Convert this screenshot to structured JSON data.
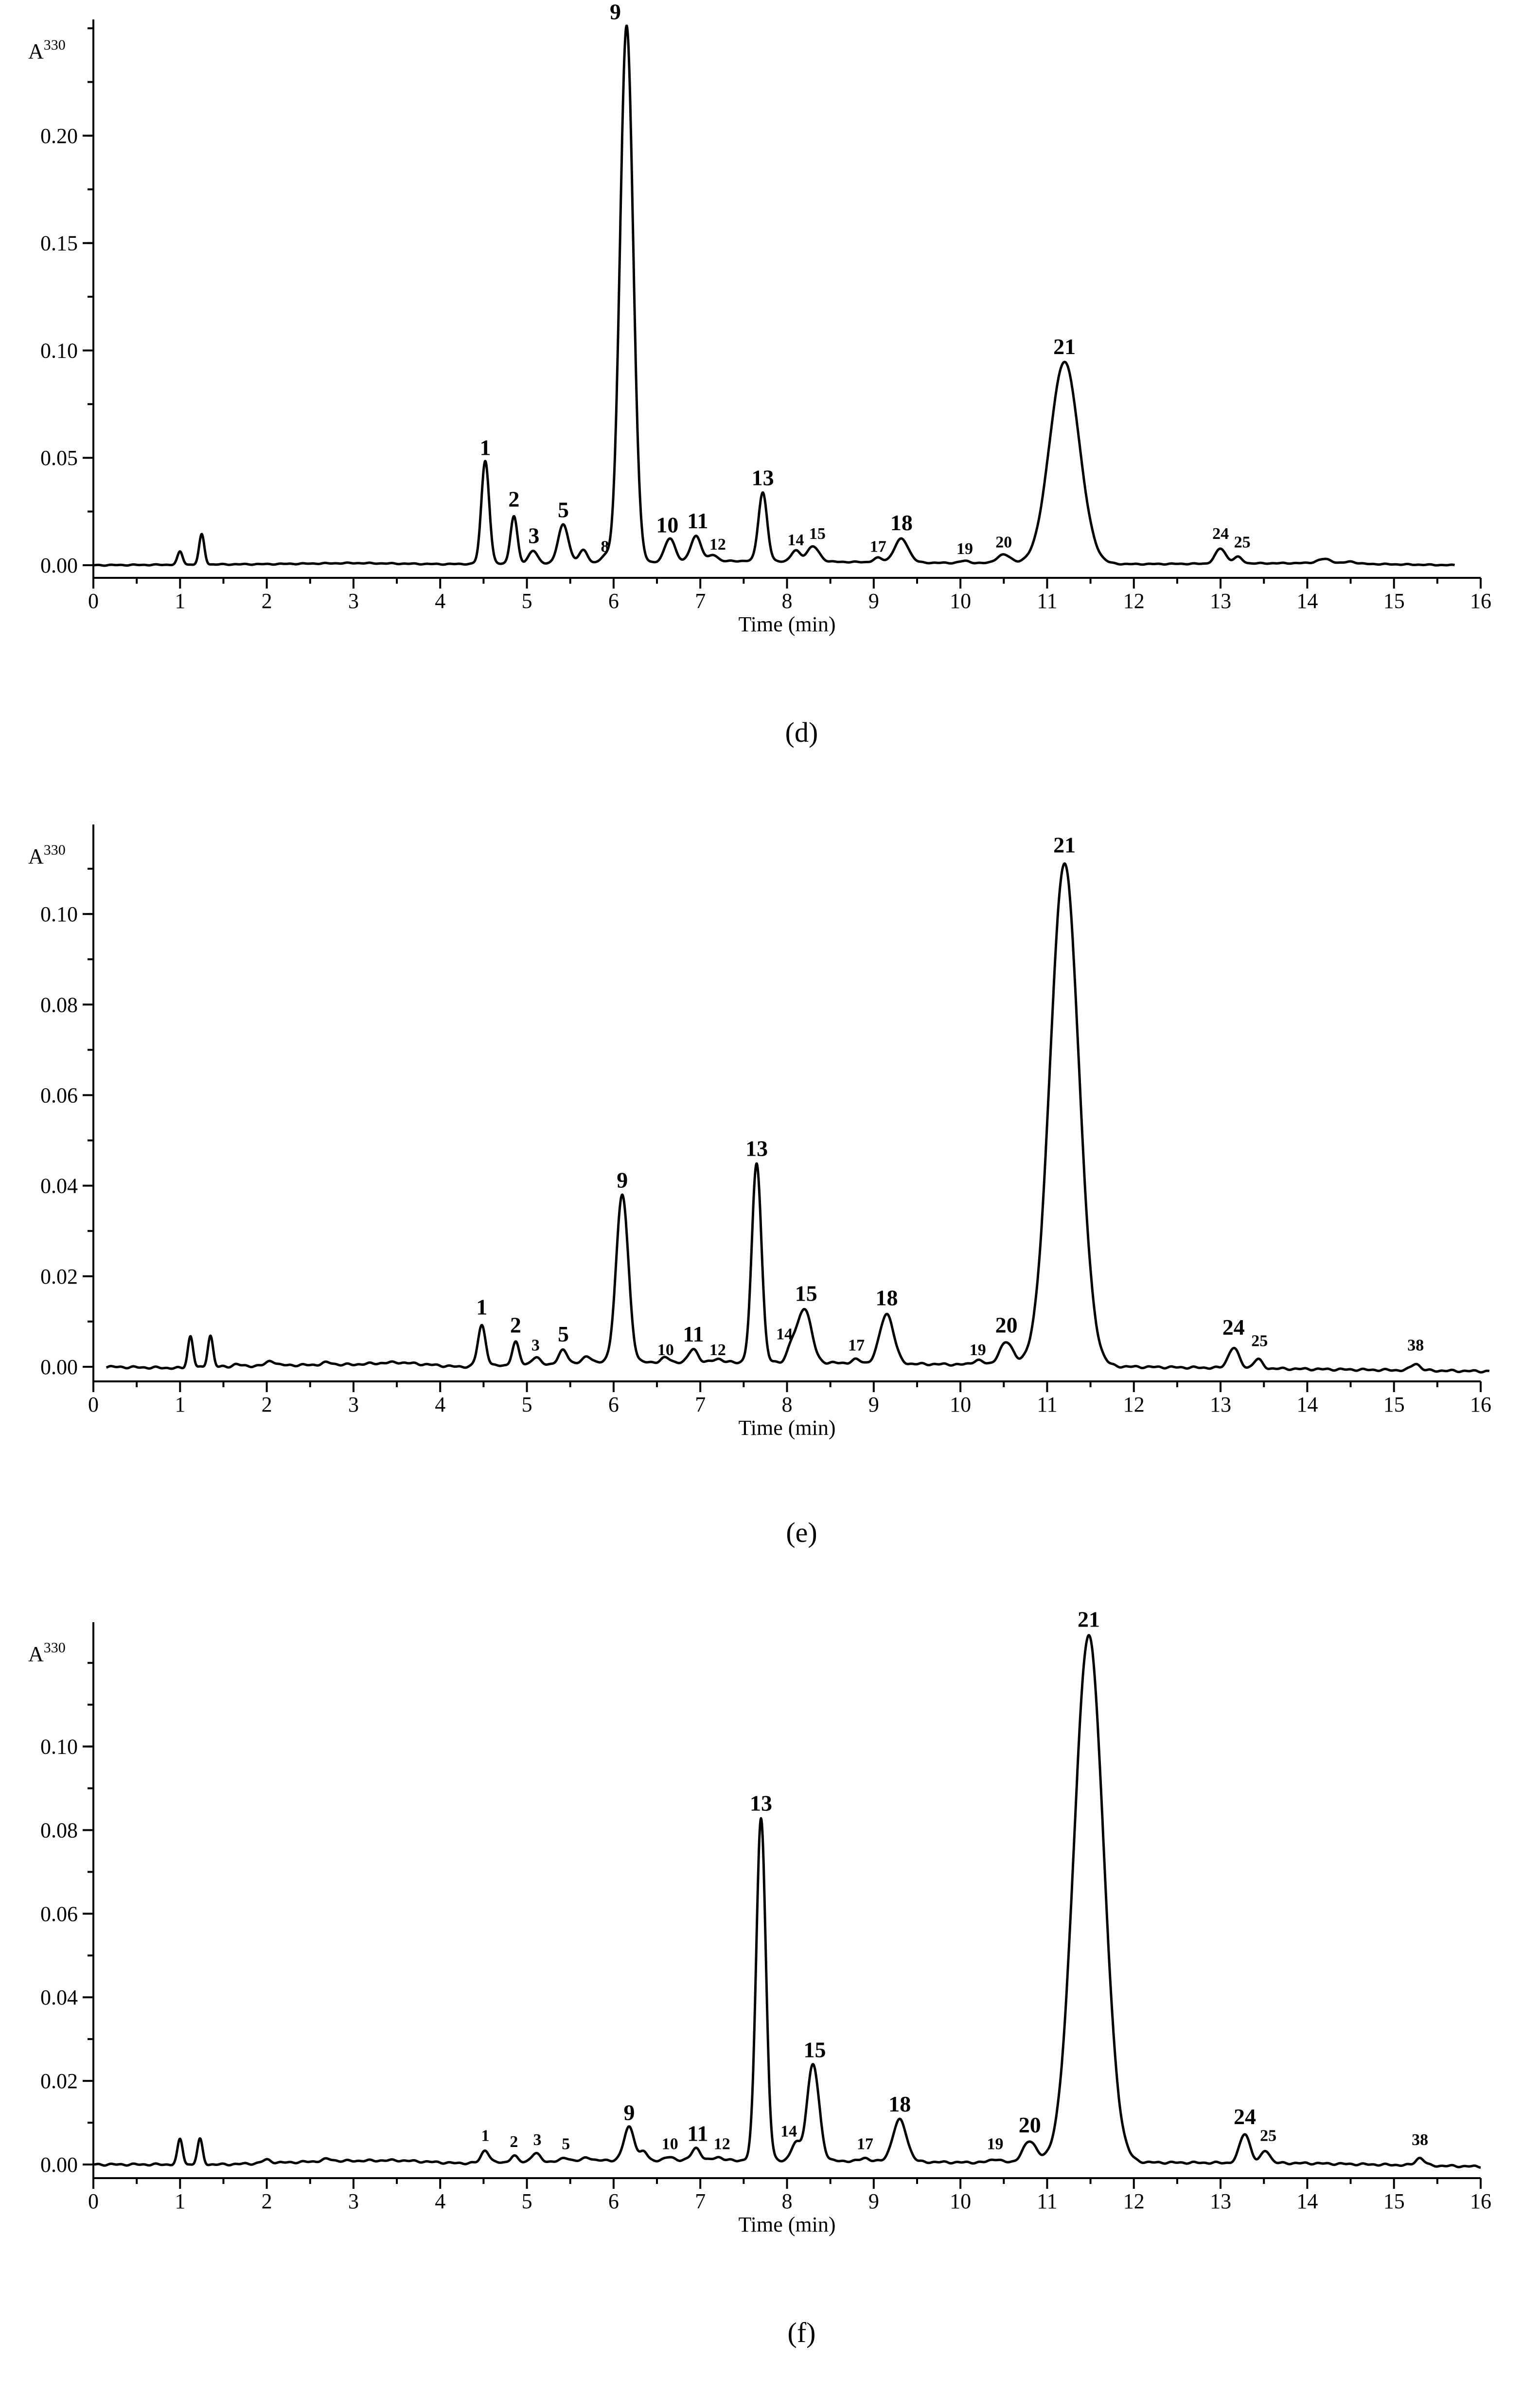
{
  "chart_data": [
    {
      "type": "line",
      "caption": "(d)",
      "caption_letter": "d",
      "ylabel": "A",
      "ylabel_sup": "330",
      "xlabel": "Time (min)",
      "xlim": [
        0,
        16
      ],
      "ylim": [
        -0.005,
        0.255
      ],
      "xticks": [
        "0",
        "1",
        "2",
        "3",
        "4",
        "5",
        "6",
        "7",
        "8",
        "9",
        "10",
        "11",
        "12",
        "13",
        "14",
        "15",
        "16"
      ],
      "yticks": [
        {
          "v": 0.0,
          "t": "0.00"
        },
        {
          "v": 0.05,
          "t": "0.05"
        },
        {
          "v": 0.1,
          "t": "0.10"
        },
        {
          "v": 0.15,
          "t": "0.15"
        },
        {
          "v": 0.2,
          "t": "0.20"
        }
      ],
      "trace_end": 15.7,
      "baseline": [
        [
          0,
          0.0
        ],
        [
          2,
          0.0005
        ],
        [
          3,
          0.001
        ],
        [
          4,
          0.0005
        ],
        [
          5.8,
          0.001
        ],
        [
          7.5,
          0.002
        ],
        [
          10,
          0.001
        ],
        [
          12,
          0.0005
        ],
        [
          14,
          0.001
        ],
        [
          15.7,
          0.0
        ]
      ],
      "peaks": [
        {
          "x": 1.0,
          "h": 0.006,
          "w": 0.03
        },
        {
          "x": 1.25,
          "h": 0.014,
          "w": 0.03
        },
        {
          "x": 4.52,
          "h": 0.048,
          "w": 0.045
        },
        {
          "x": 4.85,
          "h": 0.022,
          "w": 0.04
        },
        {
          "x": 5.07,
          "h": 0.006,
          "w": 0.05
        },
        {
          "x": 5.42,
          "h": 0.018,
          "w": 0.06
        },
        {
          "x": 5.65,
          "h": 0.006,
          "w": 0.05
        },
        {
          "x": 5.9,
          "h": 0.003,
          "w": 0.05
        },
        {
          "x": 6.15,
          "h": 0.25,
          "w": 0.075
        },
        {
          "x": 6.65,
          "h": 0.011,
          "w": 0.06
        },
        {
          "x": 6.95,
          "h": 0.012,
          "w": 0.06
        },
        {
          "x": 7.15,
          "h": 0.003,
          "w": 0.05
        },
        {
          "x": 7.72,
          "h": 0.032,
          "w": 0.05
        },
        {
          "x": 8.1,
          "h": 0.005,
          "w": 0.05
        },
        {
          "x": 8.3,
          "h": 0.007,
          "w": 0.07
        },
        {
          "x": 9.05,
          "h": 0.002,
          "w": 0.05
        },
        {
          "x": 9.32,
          "h": 0.011,
          "w": 0.08
        },
        {
          "x": 10.05,
          "h": 0.001,
          "w": 0.06
        },
        {
          "x": 10.5,
          "h": 0.004,
          "w": 0.08
        },
        {
          "x": 11.2,
          "h": 0.094,
          "w": 0.17
        },
        {
          "x": 13.0,
          "h": 0.007,
          "w": 0.06
        },
        {
          "x": 13.2,
          "h": 0.003,
          "w": 0.05
        },
        {
          "x": 14.2,
          "h": 0.002,
          "w": 0.08
        },
        {
          "x": 14.5,
          "h": 0.001,
          "w": 0.06
        }
      ],
      "labels": [
        {
          "t": "1",
          "x": 4.52,
          "y": 0.049,
          "big": true
        },
        {
          "t": "2",
          "x": 4.85,
          "y": 0.025,
          "big": true
        },
        {
          "t": "3",
          "x": 5.08,
          "y": 0.008,
          "big": true
        },
        {
          "t": "5",
          "x": 5.42,
          "y": 0.02,
          "big": true
        },
        {
          "t": "8",
          "x": 5.9,
          "y": 0.004,
          "big": false
        },
        {
          "t": "9",
          "x": 6.02,
          "y": 0.252,
          "big": true
        },
        {
          "t": "10",
          "x": 6.62,
          "y": 0.013,
          "big": true
        },
        {
          "t": "11",
          "x": 6.97,
          "y": 0.015,
          "big": true
        },
        {
          "t": "12",
          "x": 7.2,
          "y": 0.005,
          "big": false
        },
        {
          "t": "13",
          "x": 7.72,
          "y": 0.035,
          "big": true
        },
        {
          "t": "14",
          "x": 8.1,
          "y": 0.007,
          "big": false
        },
        {
          "t": "15",
          "x": 8.35,
          "y": 0.01,
          "big": false
        },
        {
          "t": "17",
          "x": 9.05,
          "y": 0.004,
          "big": false
        },
        {
          "t": "18",
          "x": 9.32,
          "y": 0.014,
          "big": true
        },
        {
          "t": "19",
          "x": 10.05,
          "y": 0.003,
          "big": false
        },
        {
          "t": "20",
          "x": 10.5,
          "y": 0.006,
          "big": false
        },
        {
          "t": "21",
          "x": 11.2,
          "y": 0.096,
          "big": true
        },
        {
          "t": "24",
          "x": 13.0,
          "y": 0.01,
          "big": false
        },
        {
          "t": "25",
          "x": 13.25,
          "y": 0.006,
          "big": false
        }
      ]
    },
    {
      "type": "line",
      "caption": "(e)",
      "caption_letter": "e",
      "ylabel": "A",
      "ylabel_sup": "330",
      "xlabel": "Time (min)",
      "xlim": [
        0,
        16
      ],
      "ylim": [
        -0.003,
        0.12
      ],
      "xticks": [
        "0",
        "1",
        "2",
        "3",
        "4",
        "5",
        "6",
        "7",
        "8",
        "9",
        "10",
        "11",
        "12",
        "13",
        "14",
        "15",
        "16"
      ],
      "yticks": [
        {
          "v": 0.0,
          "t": "0.00"
        },
        {
          "v": 0.02,
          "t": "0.02"
        },
        {
          "v": 0.04,
          "t": "0.04"
        },
        {
          "v": 0.06,
          "t": "0.06"
        },
        {
          "v": 0.08,
          "t": "0.08"
        },
        {
          "v": 0.1,
          "t": "0.10"
        }
      ],
      "trace_end": 16.1,
      "baseline": [
        [
          0.15,
          0.0
        ],
        [
          1,
          -0.0003
        ],
        [
          2,
          0.0003
        ],
        [
          3,
          0.0005
        ],
        [
          3.5,
          0.001
        ],
        [
          4.2,
          0.0
        ],
        [
          6,
          0.001
        ],
        [
          8,
          0.001
        ],
        [
          10,
          0.0005
        ],
        [
          12,
          0.0
        ],
        [
          14,
          -0.0005
        ],
        [
          16.1,
          -0.001
        ]
      ],
      "peaks": [
        {
          "x": 1.12,
          "h": 0.007,
          "w": 0.03
        },
        {
          "x": 1.35,
          "h": 0.007,
          "w": 0.03
        },
        {
          "x": 1.65,
          "h": 0.0005,
          "w": 0.04
        },
        {
          "x": 2.05,
          "h": 0.001,
          "w": 0.05
        },
        {
          "x": 2.7,
          "h": 0.0005,
          "w": 0.06
        },
        {
          "x": 4.48,
          "h": 0.009,
          "w": 0.045
        },
        {
          "x": 4.87,
          "h": 0.005,
          "w": 0.04
        },
        {
          "x": 5.1,
          "h": 0.0015,
          "w": 0.05
        },
        {
          "x": 5.42,
          "h": 0.003,
          "w": 0.05
        },
        {
          "x": 5.7,
          "h": 0.0015,
          "w": 0.05
        },
        {
          "x": 6.1,
          "h": 0.037,
          "w": 0.07
        },
        {
          "x": 6.6,
          "h": 0.001,
          "w": 0.05
        },
        {
          "x": 6.92,
          "h": 0.003,
          "w": 0.05
        },
        {
          "x": 7.2,
          "h": 0.0008,
          "w": 0.05
        },
        {
          "x": 7.65,
          "h": 0.044,
          "w": 0.055
        },
        {
          "x": 8.05,
          "h": 0.003,
          "w": 0.05
        },
        {
          "x": 8.2,
          "h": 0.012,
          "w": 0.08
        },
        {
          "x": 8.8,
          "h": 0.0008,
          "w": 0.05
        },
        {
          "x": 9.15,
          "h": 0.011,
          "w": 0.08
        },
        {
          "x": 10.2,
          "h": 0.001,
          "w": 0.06
        },
        {
          "x": 10.53,
          "h": 0.005,
          "w": 0.08
        },
        {
          "x": 11.2,
          "h": 0.111,
          "w": 0.165
        },
        {
          "x": 13.15,
          "h": 0.0045,
          "w": 0.06
        },
        {
          "x": 13.43,
          "h": 0.002,
          "w": 0.05
        },
        {
          "x": 15.25,
          "h": 0.0015,
          "w": 0.05
        }
      ],
      "labels": [
        {
          "t": "1",
          "x": 4.48,
          "y": 0.0105,
          "big": true
        },
        {
          "t": "2",
          "x": 4.87,
          "y": 0.0065,
          "big": true
        },
        {
          "t": "3",
          "x": 5.1,
          "y": 0.0025,
          "big": false
        },
        {
          "t": "5",
          "x": 5.42,
          "y": 0.0045,
          "big": true
        },
        {
          "t": "9",
          "x": 6.1,
          "y": 0.0385,
          "big": true
        },
        {
          "t": "10",
          "x": 6.6,
          "y": 0.0015,
          "big": false
        },
        {
          "t": "11",
          "x": 6.92,
          "y": 0.0045,
          "big": true
        },
        {
          "t": "12",
          "x": 7.2,
          "y": 0.0015,
          "big": false
        },
        {
          "t": "13",
          "x": 7.65,
          "y": 0.0455,
          "big": true
        },
        {
          "t": "14",
          "x": 7.97,
          "y": 0.005,
          "big": false
        },
        {
          "t": "15",
          "x": 8.22,
          "y": 0.0135,
          "big": true
        },
        {
          "t": "17",
          "x": 8.8,
          "y": 0.0025,
          "big": false
        },
        {
          "t": "18",
          "x": 9.15,
          "y": 0.0125,
          "big": true
        },
        {
          "t": "19",
          "x": 10.2,
          "y": 0.0015,
          "big": false
        },
        {
          "t": "20",
          "x": 10.53,
          "y": 0.0065,
          "big": true
        },
        {
          "t": "21",
          "x": 11.2,
          "y": 0.1125,
          "big": true
        },
        {
          "t": "24",
          "x": 13.15,
          "y": 0.006,
          "big": true
        },
        {
          "t": "25",
          "x": 13.45,
          "y": 0.0035,
          "big": false
        },
        {
          "t": "38",
          "x": 15.25,
          "y": 0.0025,
          "big": false
        }
      ]
    },
    {
      "type": "line",
      "caption": "(f)",
      "caption_letter": "f",
      "ylabel": "A",
      "ylabel_sup": "330",
      "xlabel": "Time (min)",
      "xlim": [
        0,
        16
      ],
      "ylim": [
        -0.003,
        0.13
      ],
      "xticks": [
        "0",
        "1",
        "2",
        "3",
        "4",
        "5",
        "6",
        "7",
        "8",
        "9",
        "10",
        "11",
        "12",
        "13",
        "14",
        "15",
        "16"
      ],
      "yticks": [
        {
          "v": 0.0,
          "t": "0.00"
        },
        {
          "v": 0.02,
          "t": "0.02"
        },
        {
          "v": 0.04,
          "t": "0.04"
        },
        {
          "v": 0.06,
          "t": "0.06"
        },
        {
          "v": 0.08,
          "t": "0.08"
        },
        {
          "v": 0.1,
          "t": "0.10"
        }
      ],
      "trace_end": 16.0,
      "baseline": [
        [
          0,
          0.0
        ],
        [
          1.5,
          0.0
        ],
        [
          2.7,
          0.0008
        ],
        [
          3.5,
          0.001
        ],
        [
          4.2,
          0.0003
        ],
        [
          6,
          0.001
        ],
        [
          8,
          0.001
        ],
        [
          10,
          0.0005
        ],
        [
          12,
          0.0005
        ],
        [
          14,
          0.0003
        ],
        [
          16,
          -0.0005
        ]
      ],
      "peaks": [
        {
          "x": 1.0,
          "h": 0.006,
          "w": 0.03
        },
        {
          "x": 1.23,
          "h": 0.006,
          "w": 0.03
        },
        {
          "x": 2.0,
          "h": 0.0008,
          "w": 0.05
        },
        {
          "x": 2.7,
          "h": 0.0005,
          "w": 0.06
        },
        {
          "x": 4.52,
          "h": 0.003,
          "w": 0.045
        },
        {
          "x": 4.85,
          "h": 0.0015,
          "w": 0.04
        },
        {
          "x": 5.1,
          "h": 0.002,
          "w": 0.05
        },
        {
          "x": 5.45,
          "h": 0.0008,
          "w": 0.05
        },
        {
          "x": 5.7,
          "h": 0.0008,
          "w": 0.05
        },
        {
          "x": 6.18,
          "h": 0.008,
          "w": 0.06
        },
        {
          "x": 6.35,
          "h": 0.002,
          "w": 0.04
        },
        {
          "x": 6.65,
          "h": 0.0008,
          "w": 0.05
        },
        {
          "x": 6.95,
          "h": 0.003,
          "w": 0.05
        },
        {
          "x": 7.2,
          "h": 0.0008,
          "w": 0.05
        },
        {
          "x": 7.7,
          "h": 0.082,
          "w": 0.055
        },
        {
          "x": 8.1,
          "h": 0.004,
          "w": 0.05
        },
        {
          "x": 8.3,
          "h": 0.023,
          "w": 0.07
        },
        {
          "x": 8.9,
          "h": 0.0008,
          "w": 0.05
        },
        {
          "x": 9.3,
          "h": 0.01,
          "w": 0.08
        },
        {
          "x": 10.4,
          "h": 0.0008,
          "w": 0.06
        },
        {
          "x": 10.8,
          "h": 0.005,
          "w": 0.08
        },
        {
          "x": 11.48,
          "h": 0.126,
          "w": 0.17
        },
        {
          "x": 13.28,
          "h": 0.007,
          "w": 0.06
        },
        {
          "x": 13.52,
          "h": 0.003,
          "w": 0.05
        },
        {
          "x": 15.3,
          "h": 0.0018,
          "w": 0.05
        }
      ],
      "labels": [
        {
          "t": "1",
          "x": 4.52,
          "y": 0.0045,
          "big": false
        },
        {
          "t": "2",
          "x": 4.85,
          "y": 0.003,
          "big": false
        },
        {
          "t": "3",
          "x": 5.12,
          "y": 0.0035,
          "big": false
        },
        {
          "t": "5",
          "x": 5.45,
          "y": 0.0025,
          "big": false
        },
        {
          "t": "9",
          "x": 6.18,
          "y": 0.0095,
          "big": true
        },
        {
          "t": "10",
          "x": 6.65,
          "y": 0.0025,
          "big": false
        },
        {
          "t": "11",
          "x": 6.97,
          "y": 0.0045,
          "big": true
        },
        {
          "t": "12",
          "x": 7.25,
          "y": 0.0025,
          "big": false
        },
        {
          "t": "13",
          "x": 7.7,
          "y": 0.0835,
          "big": true
        },
        {
          "t": "14",
          "x": 8.02,
          "y": 0.0055,
          "big": false
        },
        {
          "t": "15",
          "x": 8.32,
          "y": 0.0245,
          "big": true
        },
        {
          "t": "17",
          "x": 8.9,
          "y": 0.0025,
          "big": false
        },
        {
          "t": "18",
          "x": 9.3,
          "y": 0.0115,
          "big": true
        },
        {
          "t": "19",
          "x": 10.4,
          "y": 0.0025,
          "big": false
        },
        {
          "t": "20",
          "x": 10.8,
          "y": 0.0065,
          "big": true
        },
        {
          "t": "21",
          "x": 11.48,
          "y": 0.1275,
          "big": true
        },
        {
          "t": "24",
          "x": 13.28,
          "y": 0.0085,
          "big": true
        },
        {
          "t": "25",
          "x": 13.55,
          "y": 0.0045,
          "big": false
        },
        {
          "t": "38",
          "x": 15.3,
          "y": 0.0035,
          "big": false
        }
      ]
    }
  ]
}
